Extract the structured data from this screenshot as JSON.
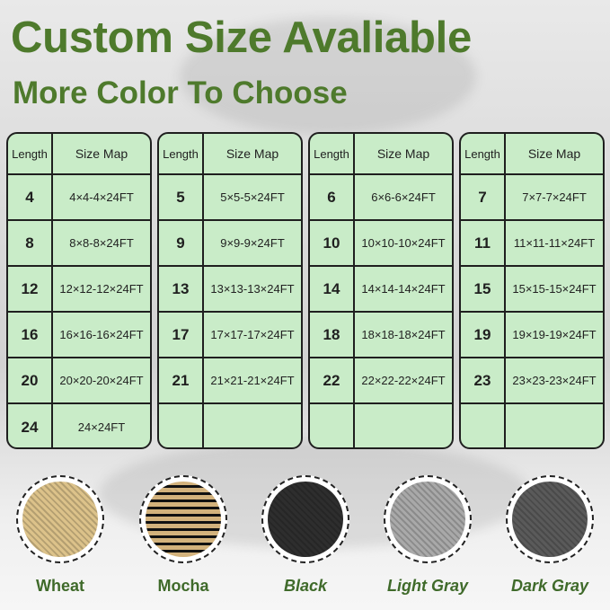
{
  "title": "Custom Size Avaliable",
  "subtitle": "More Color To Choose",
  "table_header": {
    "length": "Length",
    "size_map": "Size Map"
  },
  "tables": [
    [
      {
        "l": "4",
        "s": "4×4-4×24FT"
      },
      {
        "l": "8",
        "s": "8×8-8×24FT"
      },
      {
        "l": "12",
        "s": "12×12-12×24FT"
      },
      {
        "l": "16",
        "s": "16×16-16×24FT"
      },
      {
        "l": "20",
        "s": "20×20-20×24FT"
      },
      {
        "l": "24",
        "s": "24×24FT"
      }
    ],
    [
      {
        "l": "5",
        "s": "5×5-5×24FT"
      },
      {
        "l": "9",
        "s": "9×9-9×24FT"
      },
      {
        "l": "13",
        "s": "13×13-13×24FT"
      },
      {
        "l": "17",
        "s": "17×17-17×24FT"
      },
      {
        "l": "21",
        "s": "21×21-21×24FT"
      },
      {
        "l": "",
        "s": ""
      }
    ],
    [
      {
        "l": "6",
        "s": "6×6-6×24FT"
      },
      {
        "l": "10",
        "s": "10×10-10×24FT"
      },
      {
        "l": "14",
        "s": "14×14-14×24FT"
      },
      {
        "l": "18",
        "s": "18×18-18×24FT"
      },
      {
        "l": "22",
        "s": "22×22-22×24FT"
      },
      {
        "l": "",
        "s": ""
      }
    ],
    [
      {
        "l": "7",
        "s": "7×7-7×24FT"
      },
      {
        "l": "11",
        "s": "11×11-11×24FT"
      },
      {
        "l": "15",
        "s": "15×15-15×24FT"
      },
      {
        "l": "19",
        "s": "19×19-19×24FT"
      },
      {
        "l": "23",
        "s": "23×23-23×24FT"
      },
      {
        "l": "",
        "s": ""
      }
    ]
  ],
  "colors": [
    {
      "name": "Wheat",
      "swatch": "#dcc28a",
      "italic": false
    },
    {
      "name": "Mocha",
      "swatch": "#6b5a3e",
      "italic": false
    },
    {
      "name": "Black",
      "swatch": "#2e2e2e",
      "italic": true
    },
    {
      "name": "Light Gray",
      "swatch": "#a9a9a9",
      "italic": true
    },
    {
      "name": "Dark Gray",
      "swatch": "#5a5a5a",
      "italic": true
    }
  ],
  "accent": "#4e7a2c"
}
